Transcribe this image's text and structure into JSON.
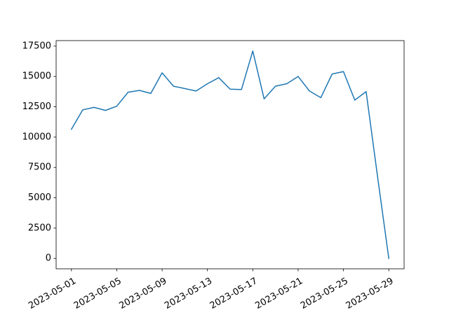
{
  "chart_data": {
    "type": "line",
    "title": "",
    "xlabel": "",
    "ylabel": "",
    "grid": false,
    "legend": "none",
    "x": [
      "2023-05-01",
      "2023-05-02",
      "2023-05-03",
      "2023-05-04",
      "2023-05-05",
      "2023-05-06",
      "2023-05-07",
      "2023-05-08",
      "2023-05-09",
      "2023-05-10",
      "2023-05-11",
      "2023-05-12",
      "2023-05-13",
      "2023-05-14",
      "2023-05-15",
      "2023-05-16",
      "2023-05-17",
      "2023-05-18",
      "2023-05-19",
      "2023-05-20",
      "2023-05-21",
      "2023-05-22",
      "2023-05-23",
      "2023-05-24",
      "2023-05-25",
      "2023-05-26",
      "2023-05-27",
      "2023-05-28",
      "2023-05-29"
    ],
    "series": [
      {
        "color": "#1f77b4",
        "values": [
          10650,
          12250,
          12450,
          12200,
          12550,
          13700,
          13850,
          13600,
          15300,
          14200,
          14000,
          13800,
          14400,
          14900,
          13950,
          13920,
          17100,
          13150,
          14200,
          14400,
          15000,
          13800,
          13250,
          15200,
          15400,
          13050,
          13750,
          6800,
          0
        ]
      }
    ],
    "xlim": [
      "2023-04-29T15:36",
      "2023-05-30T08:24"
    ],
    "ylim": [
      -855,
      17955
    ],
    "xticks": [
      "2023-05-01",
      "2023-05-05",
      "2023-05-09",
      "2023-05-13",
      "2023-05-17",
      "2023-05-21",
      "2023-05-25",
      "2023-05-29"
    ],
    "yticks": [
      0,
      2500,
      5000,
      7500,
      10000,
      12500,
      15000,
      17500
    ]
  }
}
